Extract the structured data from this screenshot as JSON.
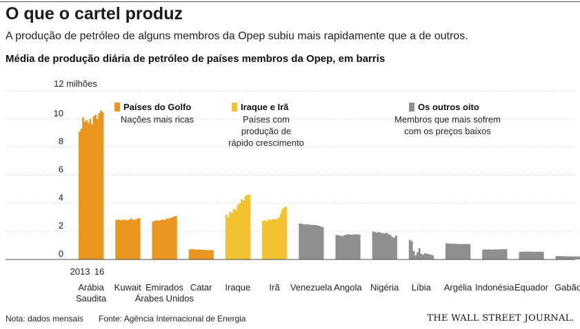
{
  "header": {
    "title": "O que o cartel produz",
    "subtitle": "A produção de petróleo de alguns membros da Opep subiu mais rapidamente que a de outros."
  },
  "footer": {
    "note": "Nota: dados mensais",
    "source": "Fonte: Agência Internacional de Energia",
    "publisher": "THE WALL STREET JOURNAL."
  },
  "colors": {
    "golfo": "#E8961E",
    "iraque_ira": "#F2C232",
    "outros": "#8F8F91"
  },
  "chart_data": {
    "type": "bar",
    "title": "Média de produção diária de petróleo de países membros da Opep, em barris",
    "y_unit_label": "12 milhões",
    "ylim": [
      0,
      12
    ],
    "yticks": [
      0,
      2,
      4,
      6,
      8,
      10
    ],
    "grid": true,
    "x_range_label": [
      "2013",
      "16"
    ],
    "groups": [
      {
        "name": "Países do Golfo",
        "description": [
          "Nações mais ricas"
        ],
        "color_key": "golfo"
      },
      {
        "name": "Iraque e Irã",
        "description": [
          "Países com",
          "produção de",
          "rápido crescimento"
        ],
        "color_key": "iraque_ira"
      },
      {
        "name": "Os outros oito",
        "description": [
          "Membros que mais sofrem",
          "com os preços baixos"
        ],
        "color_key": "outros"
      }
    ],
    "countries": [
      {
        "label": [
          "Arábia",
          "Saudita"
        ],
        "group": 0,
        "values": [
          9.1,
          9.3,
          10.1,
          9.8,
          9.9,
          9.7,
          10.0,
          9.6,
          10.2,
          10.3,
          10.0,
          10.4,
          10.6,
          10.5
        ]
      },
      {
        "label": [
          "Kuwait"
        ],
        "group": 0,
        "values": [
          2.8,
          2.85,
          2.8,
          2.8,
          2.85,
          2.8,
          2.8,
          2.85,
          2.9,
          2.8,
          2.85,
          2.9,
          2.95
        ]
      },
      {
        "label": [
          "Emirados",
          "Árabes Unidos"
        ],
        "group": 0,
        "values": [
          2.7,
          2.75,
          2.8,
          2.75,
          2.8,
          2.85,
          2.8,
          2.9,
          2.9,
          2.95,
          3.0,
          3.05,
          3.1
        ]
      },
      {
        "label": [
          "Catar"
        ],
        "group": 0,
        "values": [
          0.72,
          0.73,
          0.72,
          0.7,
          0.7,
          0.71,
          0.69,
          0.68,
          0.68,
          0.67,
          0.67,
          0.66
        ]
      },
      {
        "label": [
          "Iraque"
        ],
        "group": 1,
        "values": [
          3.2,
          3.0,
          3.4,
          3.3,
          3.6,
          3.5,
          3.9,
          4.0,
          4.3,
          4.2,
          4.5,
          4.6,
          4.6
        ]
      },
      {
        "label": [
          "Irã"
        ],
        "group": 1,
        "values": [
          2.75,
          2.8,
          2.7,
          2.85,
          2.8,
          2.85,
          2.9,
          2.85,
          2.9,
          3.0,
          3.3,
          3.6,
          3.7,
          3.75
        ]
      },
      {
        "label": [
          "Venezuela"
        ],
        "group": 2,
        "values": [
          2.55,
          2.55,
          2.5,
          2.5,
          2.5,
          2.48,
          2.47,
          2.45,
          2.45,
          2.43,
          2.4,
          2.35,
          2.3
        ]
      },
      {
        "label": [
          "Angola"
        ],
        "group": 2,
        "values": [
          1.75,
          1.72,
          1.7,
          1.65,
          1.72,
          1.75,
          1.8,
          1.78,
          1.75,
          1.78,
          1.8,
          1.78,
          1.77
        ]
      },
      {
        "label": [
          "Nigéria"
        ],
        "group": 2,
        "values": [
          2.0,
          1.95,
          1.92,
          1.95,
          1.9,
          1.88,
          1.85,
          1.9,
          1.8,
          1.75,
          1.6,
          1.55,
          1.7
        ]
      },
      {
        "label": [
          "Líbia"
        ],
        "group": 2,
        "values": [
          1.4,
          1.3,
          0.6,
          0.3,
          0.5,
          0.8,
          0.4,
          0.35,
          0.45,
          0.4,
          0.38,
          0.33,
          0.3
        ]
      },
      {
        "label": [
          "Argélia"
        ],
        "group": 2,
        "values": [
          1.15,
          1.14,
          1.13,
          1.12,
          1.12,
          1.11,
          1.1,
          1.1,
          1.1,
          1.1,
          1.1,
          1.1,
          1.1
        ]
      },
      {
        "label": [
          "Indonésia"
        ],
        "group": 2,
        "values": [
          0.7,
          0.72,
          0.7,
          0.72,
          0.71,
          0.7,
          0.72,
          0.71,
          0.72,
          0.72,
          0.73,
          0.73,
          0.74
        ]
      },
      {
        "label": [
          "Equador"
        ],
        "group": 2,
        "values": [
          0.55,
          0.55,
          0.55,
          0.56,
          0.56,
          0.56,
          0.56,
          0.55,
          0.55,
          0.55,
          0.55,
          0.55,
          0.55
        ]
      },
      {
        "label": [
          "Gabão"
        ],
        "group": 2,
        "values": [
          0.25,
          0.24,
          0.24,
          0.23,
          0.23,
          0.23,
          0.22,
          0.22,
          0.22,
          0.22,
          0.22,
          0.21,
          0.21
        ]
      }
    ]
  }
}
